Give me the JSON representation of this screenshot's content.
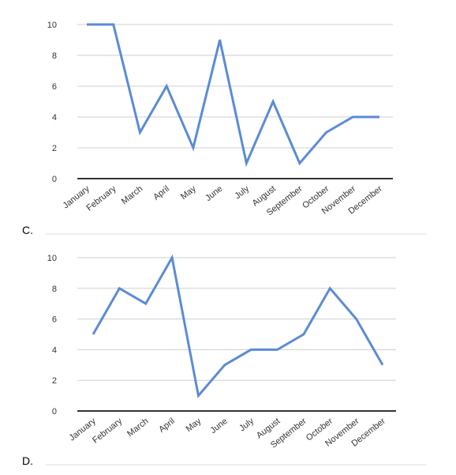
{
  "chart_data": [
    {
      "option_label": "C.",
      "type": "line",
      "categories": [
        "January",
        "February",
        "March",
        "April",
        "May",
        "June",
        "July",
        "August",
        "September",
        "October",
        "November",
        "December"
      ],
      "series": [
        {
          "values": [
            10,
            10,
            3,
            6,
            2,
            9,
            1,
            5,
            1,
            3,
            4,
            4
          ],
          "color": "#5b8bd6"
        }
      ],
      "yticks": [
        0,
        2,
        4,
        6,
        8,
        10
      ],
      "ylim": [
        0,
        10
      ],
      "grid": true,
      "title": "",
      "xlabel": "",
      "ylabel": ""
    },
    {
      "option_label": "D.",
      "type": "line",
      "categories": [
        "January",
        "February",
        "March",
        "April",
        "May",
        "June",
        "July",
        "August",
        "September",
        "October",
        "November",
        "December"
      ],
      "series": [
        {
          "values": [
            5,
            8,
            7,
            10,
            1,
            3,
            4,
            4,
            5,
            8,
            6,
            3
          ],
          "color": "#5b8bd6"
        }
      ],
      "yticks": [
        0,
        2,
        4,
        6,
        8,
        10
      ],
      "ylim": [
        0,
        10
      ],
      "grid": true,
      "title": "",
      "xlabel": "",
      "ylabel": ""
    }
  ]
}
